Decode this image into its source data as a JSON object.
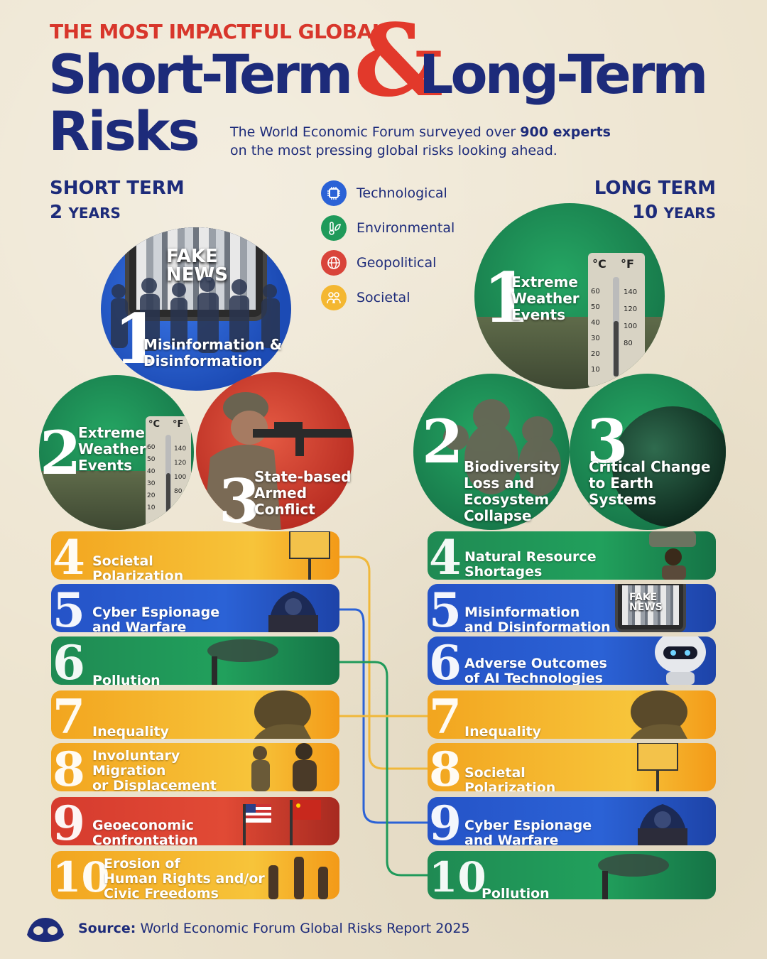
{
  "header": {
    "kicker": "THE MOST IMPACTFUL GLOBAL",
    "title_short": "Short-Term",
    "ampersand": "&",
    "title_long": "Long-Term",
    "title_risks": "Risks",
    "subtitle_before": "The World Economic Forum surveyed over ",
    "subtitle_bold": "900 experts",
    "subtitle_after": "on the most pressing global risks looking ahead."
  },
  "short_term": {
    "heading": "SHORT TERM",
    "years_number": "2",
    "years_word": "YEARS",
    "top": [
      {
        "rank": "1",
        "label_line1": "Misinformation &",
        "label_line2": "Disinformation",
        "badge": "FAKE",
        "badge2": "NEWS",
        "category": "Technological"
      },
      {
        "rank": "2",
        "label_line1": "Extreme",
        "label_line2": "Weather",
        "label_line3": "Events",
        "category": "Environmental"
      },
      {
        "rank": "3",
        "label_line1": "State-based",
        "label_line2": "Armed",
        "label_line3": "Conflict",
        "category": "Geopolitical"
      }
    ],
    "bars": [
      {
        "rank": "4",
        "line1": "Societal",
        "line2": "Polarization",
        "color": "yellow"
      },
      {
        "rank": "5",
        "line1": "Cyber Espionage",
        "line2": "and Warfare",
        "color": "blue"
      },
      {
        "rank": "6",
        "line1": "Pollution",
        "line2": "",
        "color": "green"
      },
      {
        "rank": "7",
        "line1": "Inequality",
        "line2": "",
        "color": "yellow"
      },
      {
        "rank": "8",
        "line1": "Involuntary",
        "line2": "Migration",
        "line3": "or Displacement",
        "color": "yellow"
      },
      {
        "rank": "9",
        "line1": "Geoeconomic",
        "line2": "Confrontation",
        "color": "red"
      },
      {
        "rank": "10",
        "line1": "Erosion of",
        "line2": "Human Rights and/or",
        "line3": "Civic Freedoms",
        "color": "yellow"
      }
    ]
  },
  "long_term": {
    "heading": "LONG TERM",
    "years_number": "10",
    "years_word": "YEARS",
    "top": [
      {
        "rank": "1",
        "label_line1": "Extreme",
        "label_line2": "Weather",
        "label_line3": "Events",
        "category": "Environmental"
      },
      {
        "rank": "2",
        "label_line1": "Biodiversity",
        "label_line2": "Loss and",
        "label_line3": "Ecosystem",
        "label_line4": "Collapse",
        "category": "Environmental"
      },
      {
        "rank": "3",
        "label_line1": "Critical Change",
        "label_line2": "to Earth",
        "label_line3": "Systems",
        "category": "Environmental"
      }
    ],
    "bars": [
      {
        "rank": "4",
        "line1": "Natural Resource",
        "line2": "Shortages",
        "color": "green"
      },
      {
        "rank": "5",
        "line1": "Misinformation",
        "line2": "and Disinformation",
        "color": "blue",
        "badge": "FAKE",
        "badge2": "NEWS"
      },
      {
        "rank": "6",
        "line1": "Adverse Outcomes",
        "line2": "of AI Technologies",
        "color": "blue"
      },
      {
        "rank": "7",
        "line1": "Inequality",
        "line2": "",
        "color": "yellow"
      },
      {
        "rank": "8",
        "line1": "Societal",
        "line2": "Polarization",
        "color": "yellow"
      },
      {
        "rank": "9",
        "line1": "Cyber Espionage",
        "line2": "and Warfare",
        "color": "blue"
      },
      {
        "rank": "10",
        "line1": "Pollution",
        "line2": "",
        "color": "green"
      }
    ]
  },
  "legend": [
    {
      "label": "Technological",
      "color": "#2b62d6",
      "icon": "chip-icon"
    },
    {
      "label": "Environmental",
      "color": "#1f9a5a",
      "icon": "leaf-thermometer-icon"
    },
    {
      "label": "Geopolitical",
      "color": "#d9443a",
      "icon": "globe-icon"
    },
    {
      "label": "Societal",
      "color": "#f4b731",
      "icon": "people-icon"
    }
  ],
  "thermometer": {
    "c": "°C",
    "f": "°F",
    "c_ticks": [
      "60",
      "50",
      "40",
      "30",
      "20",
      "10"
    ],
    "f_ticks": [
      "140",
      "120",
      "100",
      "80"
    ]
  },
  "colors": {
    "navy": "#1d2b7a",
    "red": "#e2392b",
    "blue": "#2b62d6",
    "green": "#1f9a5a",
    "yellow": "#f4b731",
    "geored": "#d9443a"
  },
  "footer": {
    "source_label": "Source:",
    "source_text": "World Economic Forum Global Risks Report 2025"
  }
}
